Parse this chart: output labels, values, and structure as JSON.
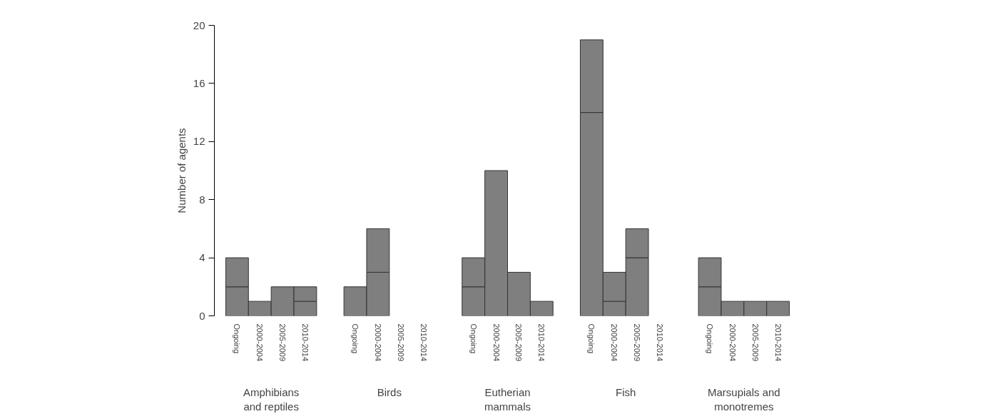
{
  "chart_data": {
    "type": "bar",
    "stacked": true,
    "ylabel": "Number of agents",
    "categories": [
      "Ongoing",
      "2000-2004",
      "2005-2009",
      "2010-2014",
      "Ongoing",
      "2000-2004",
      "2005-2009",
      "2010-2014",
      "Ongoing",
      "2000-2004",
      "2005-2009",
      "2010-2014",
      "Ongoing",
      "2000-2004",
      "2005-2009",
      "2010-2014",
      "Ongoing",
      "2000-2004",
      "2005-2009",
      "2010-2014"
    ],
    "series": [
      {
        "color": "#7f7f7f",
        "values": [
          2,
          1,
          2,
          1,
          2,
          3,
          0,
          0,
          2,
          10,
          3,
          1,
          14,
          1,
          4,
          0,
          2,
          1,
          1,
          1
        ]
      },
      {
        "color": "#7f7f7f",
        "values": [
          2,
          0,
          0,
          1,
          0,
          3,
          0,
          0,
          2,
          0,
          0,
          0,
          5,
          2,
          2,
          0,
          2,
          0,
          0,
          0
        ]
      }
    ],
    "ylim": [
      0,
      20
    ],
    "yticks": [
      0,
      4,
      8,
      12,
      16,
      20
    ],
    "grid": false,
    "annotations": [
      "Amphibians\nand reptiles",
      "Birds",
      "Eutherian\nmammals",
      "Fish",
      "Marsupials and\nmonotremes"
    ]
  }
}
